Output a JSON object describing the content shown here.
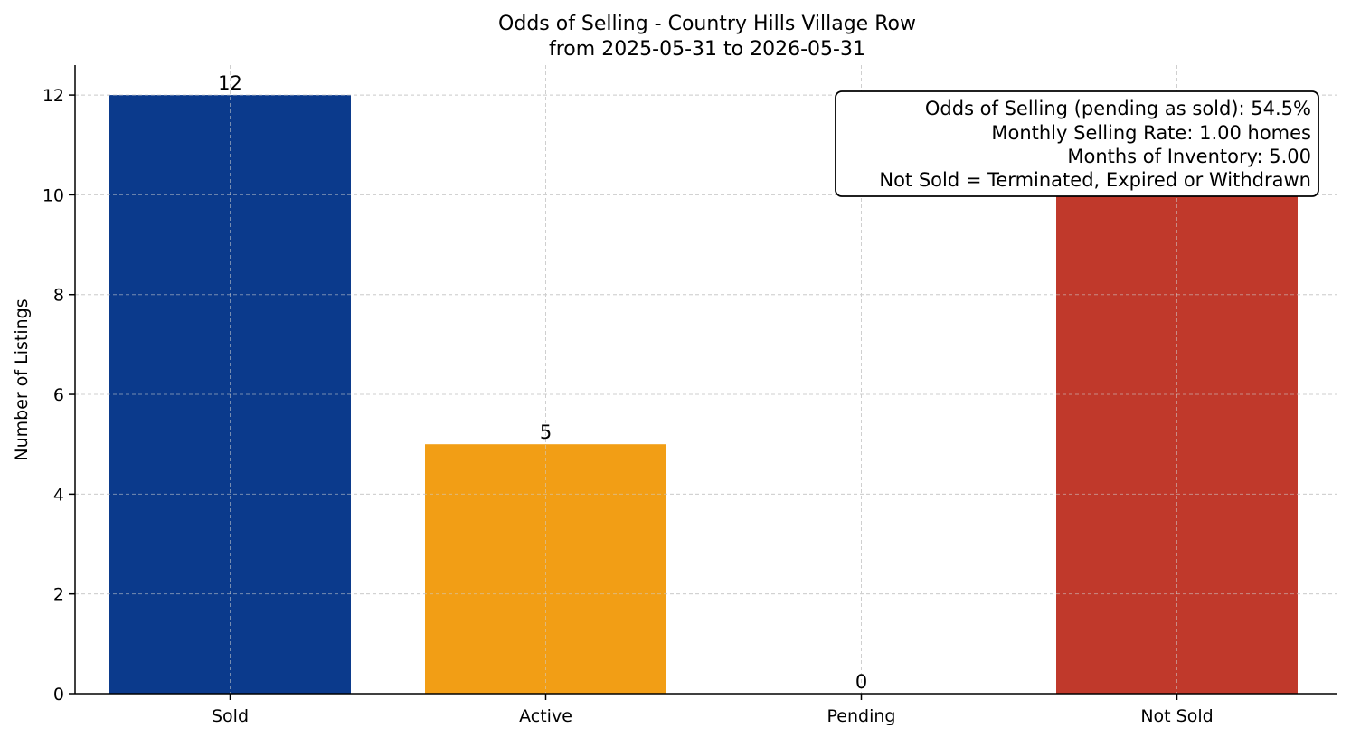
{
  "chart_data": {
    "type": "bar",
    "title": "Odds of Selling - Country Hills Village Row",
    "subtitle": "from 2025-05-31 to 2026-05-31",
    "xlabel": "",
    "ylabel": "Number of Listings",
    "categories": [
      "Sold",
      "Active",
      "Pending",
      "Not Sold"
    ],
    "values": [
      12,
      5,
      0,
      10
    ],
    "data_labels": [
      "12",
      "5",
      "0",
      ""
    ],
    "colors": [
      "#0b3a8c",
      "#f29e15",
      "#f29e15",
      "#c0392b"
    ],
    "ylim": [
      0,
      12.6
    ],
    "yticks": [
      0,
      2,
      4,
      6,
      8,
      10,
      12
    ],
    "grid": true,
    "info_box": {
      "placement": "top-right",
      "lines": [
        "Odds of Selling (pending as sold): 54.5%",
        "Monthly Selling Rate: 1.00 homes",
        "Months of Inventory: 5.00",
        "Not Sold = Terminated, Expired or Withdrawn"
      ]
    }
  }
}
